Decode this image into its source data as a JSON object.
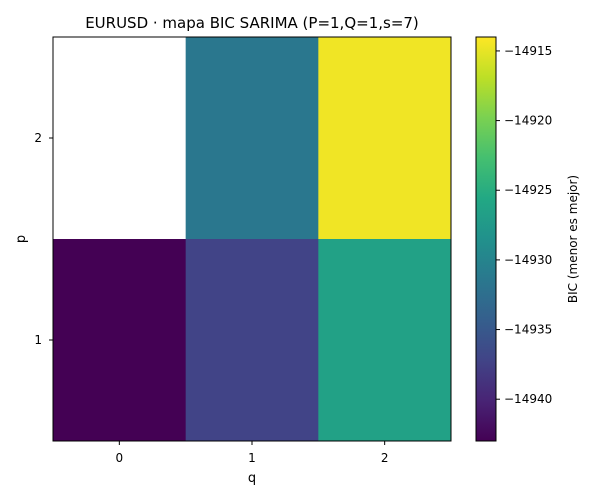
{
  "chart_data": {
    "type": "heatmap",
    "title": "EURUSD · mapa BIC SARIMA (P=1,Q=1,s=7)",
    "xlabel": "q",
    "ylabel": "p",
    "x_categories": [
      "0",
      "1",
      "2"
    ],
    "y_categories": [
      "2",
      "1"
    ],
    "values": [
      [
        null,
        -14931.5,
        -14914.6
      ],
      [
        -14943.0,
        -14937.2,
        -14926.5
      ]
    ],
    "colorbar": {
      "label": "BIC (menor es mejor)",
      "range": [
        -14943.0,
        -14914.0
      ],
      "ticks": [
        -14940,
        -14935,
        -14930,
        -14925,
        -14920,
        -14915
      ],
      "tick_labels": [
        "−14940",
        "−14935",
        "−14930",
        "−14925",
        "−14920",
        "−14915"
      ]
    },
    "colormap": "viridis",
    "missing_color": "#ffffff",
    "grid": false
  }
}
